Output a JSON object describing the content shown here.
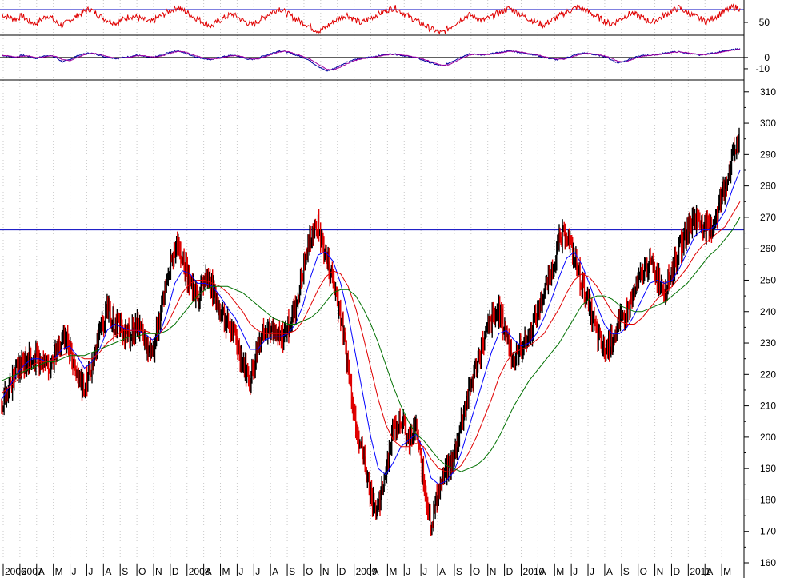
{
  "colors": {
    "background": "#ffffff",
    "rsi_line": "#e00000",
    "macd_line": "#0000a0",
    "macd_signal": "#a000a0",
    "price_bar": "#000000",
    "price_bar_down": "#e00000",
    "ma_short": "#0000ff",
    "ma_mid": "#e00000",
    "ma_long": "#007000",
    "resistance": "#0000c0",
    "gridline": "#c8c8c8",
    "panel_border": "#000000"
  },
  "chart_data": [
    {
      "type": "line",
      "panel": "rsi",
      "yticks": [
        "50"
      ],
      "ylim": [
        20,
        85
      ],
      "reference_levels": [
        70,
        30
      ],
      "series": [
        {
          "values": [
            62,
            58,
            55,
            60,
            52,
            48,
            56,
            61,
            50,
            45,
            53,
            59,
            66,
            71,
            64,
            57,
            52,
            49,
            55,
            60,
            58,
            54,
            50,
            57,
            63,
            69,
            74,
            68,
            61,
            55,
            49,
            44,
            52,
            58,
            63,
            57,
            51,
            46,
            53,
            60,
            67,
            72,
            65,
            58,
            52,
            47,
            40,
            36,
            44,
            51,
            58,
            62,
            55,
            49,
            54,
            60,
            65,
            70,
            73,
            67,
            60,
            54,
            48,
            42,
            37,
            33,
            41,
            49,
            56,
            62,
            58,
            53,
            57,
            63,
            68,
            72,
            66,
            60,
            55,
            50,
            46,
            52,
            58,
            64,
            69,
            74,
            70,
            64,
            58,
            52,
            47,
            53,
            59,
            65,
            60,
            55,
            50,
            56,
            62,
            68,
            73,
            67,
            61,
            56,
            51,
            57,
            63,
            69,
            74,
            72
          ]
        }
      ]
    },
    {
      "type": "line",
      "panel": "macd",
      "yticks": [
        "0",
        "-10"
      ],
      "ylim": [
        -20,
        12
      ],
      "reference_levels": [
        0
      ],
      "series": [
        {
          "values": [
            2,
            1,
            0,
            2,
            1,
            -1,
            1,
            2,
            0,
            -4,
            -2,
            1,
            3,
            4,
            3,
            1,
            0,
            -1,
            0,
            1,
            2,
            1,
            0,
            1,
            3,
            5,
            6,
            4,
            2,
            0,
            -1,
            -2,
            0,
            1,
            2,
            1,
            -1,
            -2,
            0,
            2,
            4,
            6,
            5,
            3,
            1,
            -1,
            -5,
            -9,
            -12,
            -10,
            -7,
            -4,
            -2,
            -1,
            0,
            1,
            2,
            3,
            3,
            2,
            1,
            0,
            -2,
            -4,
            -6,
            -8,
            -5,
            -2,
            1,
            3,
            3,
            2,
            3,
            4,
            5,
            6,
            5,
            4,
            3,
            2,
            0,
            -1,
            -2,
            -1,
            1,
            3,
            4,
            3,
            2,
            1,
            -2,
            -5,
            -3,
            -1,
            1,
            2,
            2,
            3,
            4,
            5,
            5,
            4,
            3,
            2,
            3,
            4,
            5,
            6,
            7,
            8
          ]
        }
      ]
    },
    {
      "type": "line",
      "panel": "price",
      "ylim": [
        160,
        313
      ],
      "yticks": [
        "160",
        "170",
        "180",
        "190",
        "200",
        "210",
        "220",
        "230",
        "240",
        "250",
        "260",
        "270",
        "280",
        "290",
        "300",
        "310"
      ],
      "resistance_level": 266,
      "x_labels": [
        "2006",
        "2007",
        "A",
        "M",
        "J",
        "J",
        "A",
        "S",
        "O",
        "N",
        "D",
        "2008",
        "A",
        "M",
        "J",
        "J",
        "A",
        "S",
        "O",
        "N",
        "D",
        "2009",
        "A",
        "M",
        "J",
        "J",
        "A",
        "S",
        "O",
        "N",
        "D",
        "2010",
        "A",
        "M",
        "J",
        "J",
        "A",
        "S",
        "O",
        "N",
        "D",
        "2011",
        "A",
        "M"
      ],
      "series": [
        {
          "values": [
            210,
            216,
            221,
            224,
            226,
            225,
            222,
            226,
            231,
            229,
            220,
            216,
            224,
            233,
            241,
            236,
            235,
            232,
            236,
            230,
            227,
            238,
            250,
            261,
            256,
            249,
            243,
            252,
            247,
            241,
            236,
            232,
            224,
            218,
            229,
            236,
            233,
            231,
            235,
            241,
            253,
            264,
            267,
            258,
            250,
            239,
            222,
            205,
            194,
            182,
            176,
            190,
            203,
            206,
            198,
            203,
            186,
            172,
            183,
            189,
            193,
            205,
            214,
            223,
            231,
            237,
            240,
            233,
            224,
            229,
            232,
            239,
            246,
            253,
            262,
            265,
            257,
            249,
            241,
            233,
            227,
            231,
            236,
            240,
            246,
            252,
            256,
            251,
            247,
            253,
            260,
            266,
            270,
            268,
            265,
            272,
            280,
            289,
            296
          ]
        },
        {
          "values": [
            212,
            216,
            220,
            223,
            225,
            225,
            224,
            225,
            228,
            229,
            226,
            222,
            224,
            228,
            234,
            236,
            235,
            234,
            234,
            233,
            231,
            233,
            240,
            249,
            253,
            252,
            249,
            249,
            248,
            245,
            241,
            238,
            233,
            228,
            228,
            231,
            232,
            232,
            233,
            236,
            242,
            251,
            258,
            259,
            256,
            249,
            239,
            226,
            213,
            200,
            190,
            188,
            192,
            197,
            199,
            201,
            196,
            187,
            185,
            186,
            189,
            195,
            203,
            211,
            219,
            227,
            233,
            234,
            231,
            229,
            230,
            233,
            238,
            244,
            251,
            257,
            259,
            255,
            249,
            242,
            236,
            233,
            233,
            235,
            239,
            244,
            249,
            250,
            249,
            250,
            254,
            259,
            264,
            266,
            266,
            268,
            272,
            279,
            285
          ]
        },
        {
          "values": [
            214,
            216,
            218,
            221,
            223,
            224,
            224,
            225,
            226,
            227,
            226,
            225,
            225,
            227,
            230,
            232,
            234,
            234,
            234,
            234,
            233,
            233,
            236,
            241,
            246,
            249,
            250,
            250,
            249,
            248,
            246,
            243,
            240,
            236,
            234,
            233,
            233,
            233,
            233,
            234,
            237,
            242,
            247,
            251,
            253,
            252,
            248,
            241,
            232,
            222,
            212,
            204,
            199,
            197,
            197,
            198,
            197,
            193,
            190,
            189,
            189,
            191,
            195,
            200,
            206,
            212,
            219,
            224,
            227,
            228,
            229,
            231,
            233,
            237,
            241,
            246,
            250,
            252,
            251,
            248,
            244,
            240,
            237,
            236,
            236,
            238,
            241,
            244,
            246,
            248,
            251,
            254,
            258,
            261,
            263,
            265,
            267,
            271,
            275
          ]
        },
        {
          "values": [
            218,
            219,
            220,
            221,
            222,
            223,
            224,
            224,
            225,
            226,
            226,
            226,
            227,
            228,
            229,
            230,
            231,
            232,
            232,
            233,
            233,
            233,
            234,
            236,
            239,
            242,
            245,
            247,
            248,
            248,
            248,
            247,
            246,
            244,
            242,
            240,
            238,
            237,
            236,
            236,
            237,
            238,
            240,
            243,
            246,
            247,
            247,
            245,
            241,
            236,
            230,
            223,
            216,
            210,
            205,
            201,
            199,
            196,
            193,
            191,
            190,
            189,
            190,
            191,
            193,
            196,
            200,
            205,
            210,
            214,
            218,
            221,
            224,
            227,
            230,
            234,
            238,
            242,
            244,
            245,
            245,
            244,
            242,
            241,
            240,
            240,
            241,
            242,
            243,
            245,
            247,
            249,
            252,
            255,
            258,
            260,
            263,
            266,
            270
          ]
        }
      ]
    }
  ]
}
